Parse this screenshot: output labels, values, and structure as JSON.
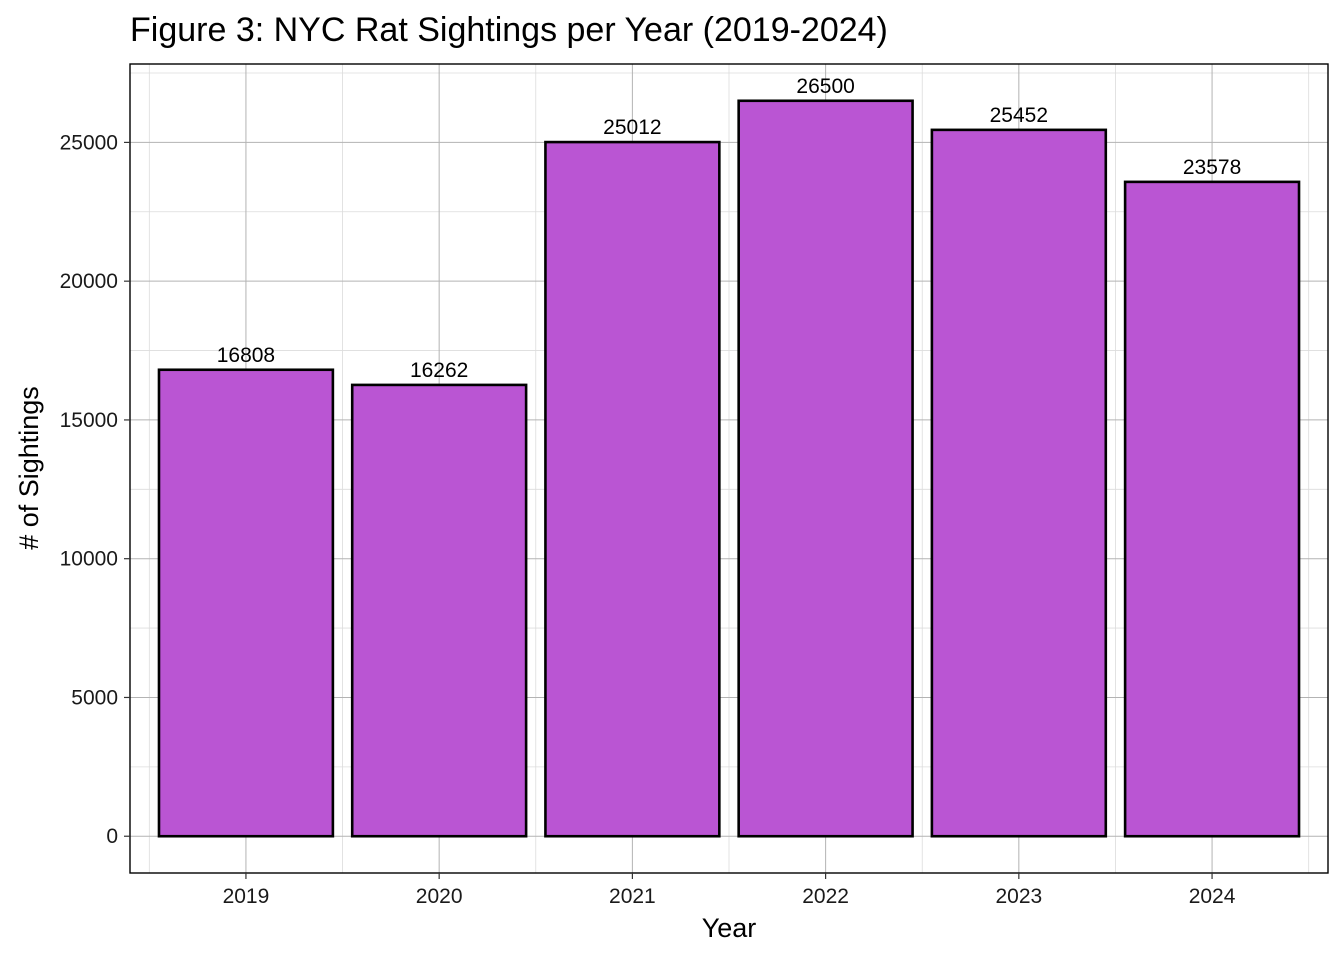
{
  "chart_data": {
    "type": "bar",
    "title": "Figure 3: NYC Rat Sightings per Year (2019-2024)",
    "xlabel": "Year",
    "ylabel": "# of Sightings",
    "categories": [
      "2019",
      "2020",
      "2021",
      "2022",
      "2023",
      "2024"
    ],
    "values": [
      16808,
      16262,
      25012,
      26500,
      25452,
      23578
    ],
    "data_labels": [
      "16808",
      "16262",
      "25012",
      "26500",
      "25452",
      "23578"
    ],
    "yticks": [
      0,
      5000,
      10000,
      15000,
      20000,
      25000
    ],
    "ytick_labels": [
      "0",
      "5000",
      "10000",
      "15000",
      "20000",
      "25000"
    ],
    "ylim": [
      -1325,
      27825
    ],
    "grid": true,
    "legend": "none",
    "colors": {
      "bar_fill": "#BA55D3",
      "bar_outline": "#000000",
      "grid_major": "#b3b3b3",
      "grid_minor": "#dcdcdc",
      "panel_border": "#000000"
    }
  }
}
